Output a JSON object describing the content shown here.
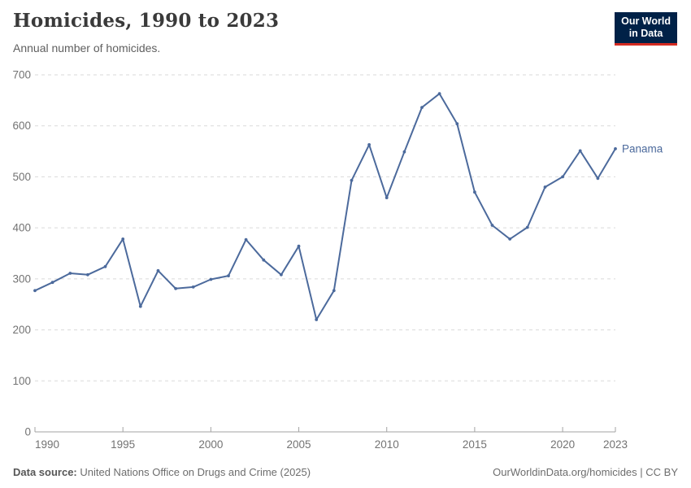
{
  "header": {
    "title": "Homicides, 1990 to 2023",
    "subtitle": "Annual number of homicides.",
    "logo_line1": "Our World",
    "logo_line2": "in Data"
  },
  "chart_data": {
    "type": "line",
    "title": "Homicides, 1990 to 2023",
    "xlabel": "",
    "ylabel": "",
    "xlim": [
      1990,
      2023
    ],
    "ylim": [
      0,
      700
    ],
    "yticks": [
      0,
      100,
      200,
      300,
      400,
      500,
      600,
      700
    ],
    "xticks": [
      1990,
      1995,
      2000,
      2005,
      2010,
      2015,
      2020,
      2023
    ],
    "grid": "horizontal-dashed",
    "legend_position": "end-of-line",
    "series": [
      {
        "name": "Panama",
        "color": "#4C6A9C",
        "years": [
          1990,
          1991,
          1992,
          1993,
          1994,
          1995,
          1996,
          1997,
          1998,
          1999,
          2000,
          2001,
          2002,
          2003,
          2004,
          2005,
          2006,
          2007,
          2008,
          2009,
          2010,
          2011,
          2012,
          2013,
          2014,
          2015,
          2016,
          2017,
          2018,
          2019,
          2020,
          2021,
          2022,
          2023
        ],
        "values": [
          277,
          293,
          311,
          308,
          324,
          378,
          246,
          316,
          281,
          284,
          299,
          306,
          377,
          337,
          308,
          364,
          220,
          277,
          493,
          563,
          459,
          549,
          636,
          663,
          604,
          470,
          405,
          378,
          401,
          480,
          500,
          551,
          497,
          555
        ]
      }
    ]
  },
  "footer": {
    "source_label": "Data source:",
    "source_text": " United Nations Office on Drugs and Crime (2025)",
    "right_text": "OurWorldinData.org/homicides | CC BY"
  },
  "colors": {
    "line": "#4C6A9C",
    "logo_bg": "#002147",
    "logo_accent": "#d42b21",
    "gridline": "#dadada",
    "axis": "#a3a3a3",
    "tick_label": "#737373"
  }
}
